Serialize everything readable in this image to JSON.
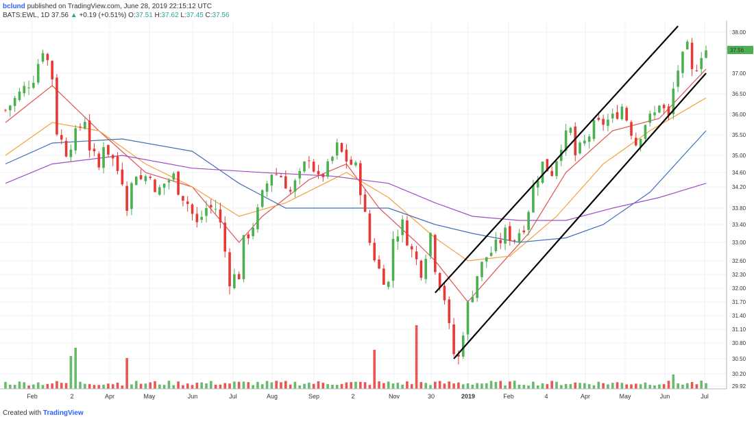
{
  "header": {
    "user": "bclund",
    "published_text": "published on TradingView.com, June 28, 2019 22:15:12 UTC",
    "symbol": "BATS:EWL, 1D",
    "last": "37.56",
    "change_arrow": "▲",
    "change": "+0.19 (+0.51%)",
    "o_label": "O:",
    "o_value": "37.51",
    "h_label": "H:",
    "h_value": "37.62",
    "l_label": "L:",
    "l_value": "37.45",
    "c_label": "C:",
    "c_value": "37.56"
  },
  "footer": {
    "created_with": "Created with",
    "brand": "TradingView"
  },
  "colors": {
    "up": "#4caf50",
    "down": "#e53935",
    "ma_red": "#e0524f",
    "ma_orange": "#f6a03c",
    "ma_blue": "#3f6fb5",
    "ma_purple": "#a24cc2",
    "channel": "#000000",
    "price_label_bg": "#4caf50"
  },
  "chart_data": {
    "type": "candlestick",
    "title": "",
    "price_axis_ticks": [
      "38.00",
      "37.56",
      "37.00",
      "36.50",
      "36.00",
      "35.50",
      "35.00",
      "34.60",
      "34.20",
      "33.80",
      "33.40",
      "33.00",
      "32.60",
      "32.30",
      "32.00",
      "31.70",
      "31.40",
      "31.10",
      "30.80",
      "30.50",
      "30.20",
      "29.92"
    ],
    "current_price": "37.56",
    "time_axis_labels": [
      "Feb",
      "2",
      "Apr",
      "May",
      "Jun",
      "Jul",
      "Aug",
      "Sep",
      "2",
      "Nov",
      "30",
      "2019",
      "Feb",
      "4",
      "Apr",
      "May",
      "Jun",
      "Jul"
    ],
    "y_range": [
      29.92,
      38.1
    ],
    "price_path": [
      [
        0,
        36.1
      ],
      [
        3,
        36.5
      ],
      [
        6,
        36.9
      ],
      [
        8,
        37.6
      ],
      [
        9,
        37.3
      ],
      [
        10,
        36.9
      ],
      [
        11,
        35.6
      ],
      [
        13,
        35.1
      ],
      [
        15,
        35.5
      ],
      [
        17,
        35.9
      ],
      [
        18,
        35.2
      ],
      [
        20,
        34.7
      ],
      [
        21,
        35.3
      ],
      [
        23,
        34.9
      ],
      [
        25,
        34.4
      ],
      [
        26,
        33.9
      ],
      [
        28,
        34.6
      ],
      [
        29,
        34.4
      ],
      [
        31,
        34.6
      ],
      [
        32,
        34.0
      ],
      [
        34,
        34.3
      ],
      [
        36,
        34.5
      ],
      [
        37,
        34.2
      ],
      [
        39,
        33.9
      ],
      [
        41,
        33.4
      ],
      [
        43,
        33.8
      ],
      [
        45,
        33.8
      ],
      [
        46,
        33.4
      ],
      [
        48,
        32.2
      ],
      [
        50,
        32.3
      ],
      [
        51,
        33.0
      ],
      [
        53,
        33.4
      ],
      [
        55,
        34.0
      ],
      [
        57,
        34.6
      ],
      [
        59,
        34.5
      ],
      [
        61,
        34.1
      ],
      [
        63,
        34.5
      ],
      [
        65,
        35.0
      ],
      [
        67,
        34.4
      ],
      [
        69,
        34.7
      ],
      [
        71,
        35.2
      ],
      [
        73,
        34.9
      ],
      [
        75,
        34.7
      ],
      [
        76,
        34.2
      ],
      [
        78,
        33.0
      ],
      [
        80,
        32.4
      ],
      [
        82,
        32.1
      ],
      [
        83,
        33.1
      ],
      [
        85,
        33.4
      ],
      [
        87,
        32.8
      ],
      [
        89,
        32.4
      ],
      [
        91,
        33.2
      ],
      [
        92,
        32.5
      ],
      [
        94,
        31.8
      ],
      [
        95,
        31.1
      ],
      [
        96,
        30.6
      ],
      [
        97,
        30.5
      ],
      [
        98,
        31.1
      ],
      [
        99,
        31.6
      ],
      [
        101,
        32.3
      ],
      [
        103,
        32.7
      ],
      [
        105,
        32.9
      ],
      [
        107,
        33.2
      ],
      [
        109,
        33.1
      ],
      [
        111,
        33.4
      ],
      [
        113,
        34.2
      ],
      [
        115,
        34.8
      ],
      [
        117,
        34.6
      ],
      [
        119,
        35.3
      ],
      [
        121,
        35.6
      ],
      [
        122,
        35.0
      ],
      [
        124,
        35.3
      ],
      [
        126,
        35.7
      ],
      [
        128,
        35.8
      ],
      [
        130,
        35.9
      ],
      [
        132,
        36.2
      ],
      [
        134,
        35.6
      ],
      [
        135,
        35.3
      ],
      [
        137,
        35.8
      ],
      [
        139,
        36.0
      ],
      [
        140,
        36.3
      ],
      [
        142,
        35.9
      ],
      [
        143,
        36.6
      ],
      [
        144,
        37.1
      ],
      [
        146,
        37.6
      ],
      [
        147,
        37.0
      ],
      [
        148,
        37.2
      ],
      [
        149,
        37.5
      ],
      [
        150,
        37.56
      ]
    ],
    "ma_series": [
      {
        "name": "",
        "color": "#e0524f",
        "values": [
          [
            0,
            35.8
          ],
          [
            10,
            36.7
          ],
          [
            20,
            35.6
          ],
          [
            30,
            34.6
          ],
          [
            40,
            34.2
          ],
          [
            50,
            33.0
          ],
          [
            55,
            33.6
          ],
          [
            65,
            34.4
          ],
          [
            73,
            34.8
          ],
          [
            80,
            33.8
          ],
          [
            88,
            33.0
          ],
          [
            92,
            32.6
          ],
          [
            99,
            31.7
          ],
          [
            105,
            32.4
          ],
          [
            112,
            33.2
          ],
          [
            120,
            34.6
          ],
          [
            130,
            35.6
          ],
          [
            140,
            35.9
          ],
          [
            150,
            37.1
          ]
        ]
      },
      {
        "name": "",
        "color": "#f6a03c",
        "values": [
          [
            0,
            35.0
          ],
          [
            10,
            35.8
          ],
          [
            20,
            35.6
          ],
          [
            30,
            34.8
          ],
          [
            40,
            34.2
          ],
          [
            50,
            33.6
          ],
          [
            60,
            33.9
          ],
          [
            73,
            34.6
          ],
          [
            82,
            34.0
          ],
          [
            92,
            33.1
          ],
          [
            99,
            32.6
          ],
          [
            108,
            32.7
          ],
          [
            118,
            33.6
          ],
          [
            128,
            34.8
          ],
          [
            138,
            35.6
          ],
          [
            150,
            36.4
          ]
        ]
      },
      {
        "name": "",
        "color": "#3f6fb5",
        "values": [
          [
            0,
            34.8
          ],
          [
            10,
            35.3
          ],
          [
            25,
            35.4
          ],
          [
            40,
            35.1
          ],
          [
            50,
            34.3
          ],
          [
            60,
            33.8
          ],
          [
            73,
            33.8
          ],
          [
            82,
            33.8
          ],
          [
            92,
            33.4
          ],
          [
            100,
            33.2
          ],
          [
            110,
            33.0
          ],
          [
            120,
            33.1
          ],
          [
            128,
            33.4
          ],
          [
            138,
            34.1
          ],
          [
            150,
            35.6
          ]
        ]
      },
      {
        "name": "",
        "color": "#a24cc2",
        "values": [
          [
            0,
            34.3
          ],
          [
            10,
            34.8
          ],
          [
            25,
            35.0
          ],
          [
            40,
            34.7
          ],
          [
            55,
            34.6
          ],
          [
            70,
            34.5
          ],
          [
            82,
            34.3
          ],
          [
            92,
            33.9
          ],
          [
            100,
            33.6
          ],
          [
            110,
            33.5
          ],
          [
            120,
            33.5
          ],
          [
            130,
            33.8
          ],
          [
            140,
            34.0
          ],
          [
            150,
            34.3
          ]
        ]
      }
    ],
    "channel_lines": [
      {
        "start": [
          92,
          31.9
        ],
        "end": [
          144,
          38.15
        ]
      },
      {
        "start": [
          96,
          30.5
        ],
        "end": [
          150,
          37.0
        ]
      }
    ],
    "volume_spikes": [
      [
        15,
        1.0
      ],
      [
        14,
        0.8
      ],
      [
        26,
        0.75
      ],
      [
        79,
        0.95
      ],
      [
        88,
        1.55
      ],
      [
        143,
        0.35
      ]
    ]
  }
}
